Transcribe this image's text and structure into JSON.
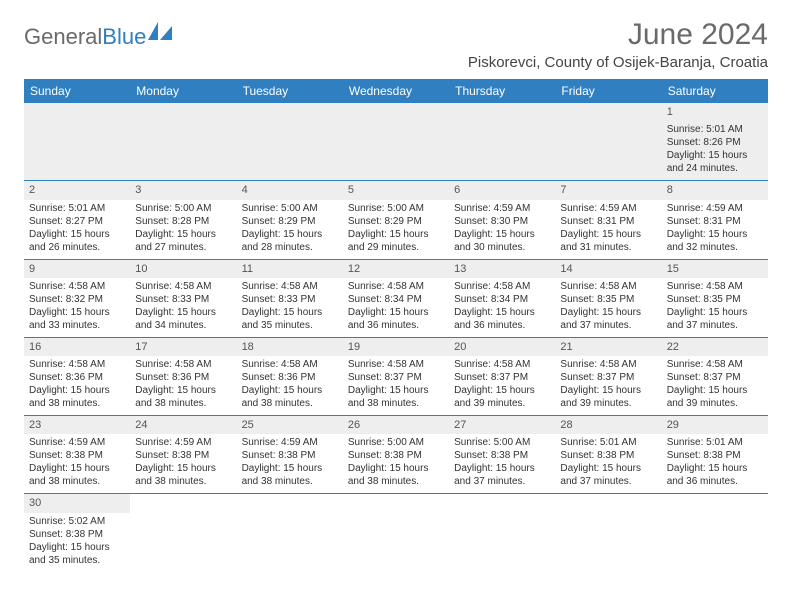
{
  "logo": {
    "part1": "General",
    "part2": "Blue"
  },
  "title": "June 2024",
  "location": "Piskorevci, County of Osijek-Baranja, Croatia",
  "headers_color": "#2f7fc1",
  "day_names": [
    "Sunday",
    "Monday",
    "Tuesday",
    "Wednesday",
    "Thursday",
    "Friday",
    "Saturday"
  ],
  "weeks": [
    [
      null,
      null,
      null,
      null,
      null,
      null,
      {
        "n": "1",
        "sr": "5:01 AM",
        "ss": "8:26 PM",
        "dl": "15 hours and 24 minutes."
      }
    ],
    [
      {
        "n": "2",
        "sr": "5:01 AM",
        "ss": "8:27 PM",
        "dl": "15 hours and 26 minutes."
      },
      {
        "n": "3",
        "sr": "5:00 AM",
        "ss": "8:28 PM",
        "dl": "15 hours and 27 minutes."
      },
      {
        "n": "4",
        "sr": "5:00 AM",
        "ss": "8:29 PM",
        "dl": "15 hours and 28 minutes."
      },
      {
        "n": "5",
        "sr": "5:00 AM",
        "ss": "8:29 PM",
        "dl": "15 hours and 29 minutes."
      },
      {
        "n": "6",
        "sr": "4:59 AM",
        "ss": "8:30 PM",
        "dl": "15 hours and 30 minutes."
      },
      {
        "n": "7",
        "sr": "4:59 AM",
        "ss": "8:31 PM",
        "dl": "15 hours and 31 minutes."
      },
      {
        "n": "8",
        "sr": "4:59 AM",
        "ss": "8:31 PM",
        "dl": "15 hours and 32 minutes."
      }
    ],
    [
      {
        "n": "9",
        "sr": "4:58 AM",
        "ss": "8:32 PM",
        "dl": "15 hours and 33 minutes."
      },
      {
        "n": "10",
        "sr": "4:58 AM",
        "ss": "8:33 PM",
        "dl": "15 hours and 34 minutes."
      },
      {
        "n": "11",
        "sr": "4:58 AM",
        "ss": "8:33 PM",
        "dl": "15 hours and 35 minutes."
      },
      {
        "n": "12",
        "sr": "4:58 AM",
        "ss": "8:34 PM",
        "dl": "15 hours and 36 minutes."
      },
      {
        "n": "13",
        "sr": "4:58 AM",
        "ss": "8:34 PM",
        "dl": "15 hours and 36 minutes."
      },
      {
        "n": "14",
        "sr": "4:58 AM",
        "ss": "8:35 PM",
        "dl": "15 hours and 37 minutes."
      },
      {
        "n": "15",
        "sr": "4:58 AM",
        "ss": "8:35 PM",
        "dl": "15 hours and 37 minutes."
      }
    ],
    [
      {
        "n": "16",
        "sr": "4:58 AM",
        "ss": "8:36 PM",
        "dl": "15 hours and 38 minutes."
      },
      {
        "n": "17",
        "sr": "4:58 AM",
        "ss": "8:36 PM",
        "dl": "15 hours and 38 minutes."
      },
      {
        "n": "18",
        "sr": "4:58 AM",
        "ss": "8:36 PM",
        "dl": "15 hours and 38 minutes."
      },
      {
        "n": "19",
        "sr": "4:58 AM",
        "ss": "8:37 PM",
        "dl": "15 hours and 38 minutes."
      },
      {
        "n": "20",
        "sr": "4:58 AM",
        "ss": "8:37 PM",
        "dl": "15 hours and 39 minutes."
      },
      {
        "n": "21",
        "sr": "4:58 AM",
        "ss": "8:37 PM",
        "dl": "15 hours and 39 minutes."
      },
      {
        "n": "22",
        "sr": "4:58 AM",
        "ss": "8:37 PM",
        "dl": "15 hours and 39 minutes."
      }
    ],
    [
      {
        "n": "23",
        "sr": "4:59 AM",
        "ss": "8:38 PM",
        "dl": "15 hours and 38 minutes."
      },
      {
        "n": "24",
        "sr": "4:59 AM",
        "ss": "8:38 PM",
        "dl": "15 hours and 38 minutes."
      },
      {
        "n": "25",
        "sr": "4:59 AM",
        "ss": "8:38 PM",
        "dl": "15 hours and 38 minutes."
      },
      {
        "n": "26",
        "sr": "5:00 AM",
        "ss": "8:38 PM",
        "dl": "15 hours and 38 minutes."
      },
      {
        "n": "27",
        "sr": "5:00 AM",
        "ss": "8:38 PM",
        "dl": "15 hours and 37 minutes."
      },
      {
        "n": "28",
        "sr": "5:01 AM",
        "ss": "8:38 PM",
        "dl": "15 hours and 37 minutes."
      },
      {
        "n": "29",
        "sr": "5:01 AM",
        "ss": "8:38 PM",
        "dl": "15 hours and 36 minutes."
      }
    ],
    [
      {
        "n": "30",
        "sr": "5:02 AM",
        "ss": "8:38 PM",
        "dl": "15 hours and 35 minutes."
      },
      null,
      null,
      null,
      null,
      null,
      null
    ]
  ],
  "labels": {
    "sunrise": "Sunrise:",
    "sunset": "Sunset:",
    "daylight": "Daylight:"
  }
}
